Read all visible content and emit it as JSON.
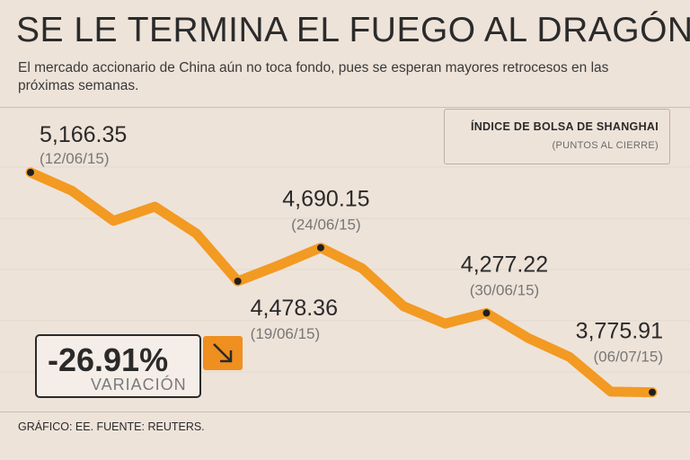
{
  "header": {
    "title": "SE LE TERMINA EL FUEGO AL DRAGÓN",
    "subtitle": "El mercado accionario de China aún no toca fondo, pues se esperan mayores retrocesos en las próximas semanas."
  },
  "legend": {
    "title": "ÍNDICE DE BOLSA DE SHANGHAI",
    "subtitle": "(PUNTOS AL CIERRE)"
  },
  "variation": {
    "value": "-26.91%",
    "label": "VARIACIÓN"
  },
  "footer": {
    "source": "GRÁFICO: EE. FUENTE: REUTERS."
  },
  "colors": {
    "line": "#f29a22",
    "accent": "#ef8f1f",
    "background": "#eee3d9"
  },
  "chart_data": {
    "type": "line",
    "title": "ÍNDICE DE BOLSA DE SHANGHAI",
    "ylabel": "PUNTOS AL CIERRE",
    "ylim": [
      3700,
      5200
    ],
    "values": [
      5166.35,
      5050,
      4860,
      4950,
      4780,
      4478.36,
      4580,
      4690.15,
      4560,
      4320,
      4210,
      4277.22,
      4120,
      4000,
      3780,
      3775.91
    ],
    "labeled_points": [
      {
        "index": 0,
        "value": "5,166.35",
        "date": "(12/06/15)"
      },
      {
        "index": 5,
        "value": "4,478.36",
        "date": "(19/06/15)"
      },
      {
        "index": 7,
        "value": "4,690.15",
        "date": "(24/06/15)"
      },
      {
        "index": 11,
        "value": "4,277.22",
        "date": "(30/06/15)"
      },
      {
        "index": 15,
        "value": "3,775.91",
        "date": "(06/07/15)"
      }
    ]
  }
}
